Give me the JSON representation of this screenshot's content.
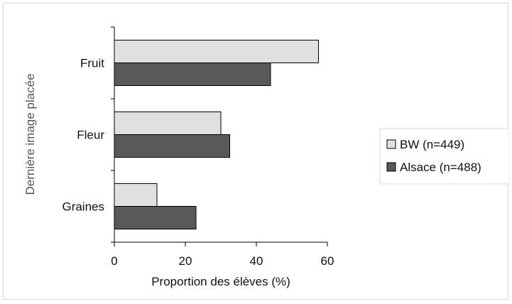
{
  "chart_data": {
    "type": "bar",
    "orientation": "horizontal",
    "categories": [
      "Fruit",
      "Fleur",
      "Graines"
    ],
    "series": [
      {
        "name": "BW (n=449)",
        "values": [
          57.5,
          30,
          12
        ],
        "color": "#e0e0e0"
      },
      {
        "name": "Alsace (n=488)",
        "values": [
          44,
          32.5,
          23
        ],
        "color": "#595959"
      }
    ],
    "xlabel": "Proportion des élèves (%)",
    "ylabel": "Dernière image placée",
    "xlim": [
      0,
      60
    ],
    "xticks": [
      "0",
      "20",
      "40",
      "60"
    ],
    "grid": false,
    "legend_position": "right"
  }
}
